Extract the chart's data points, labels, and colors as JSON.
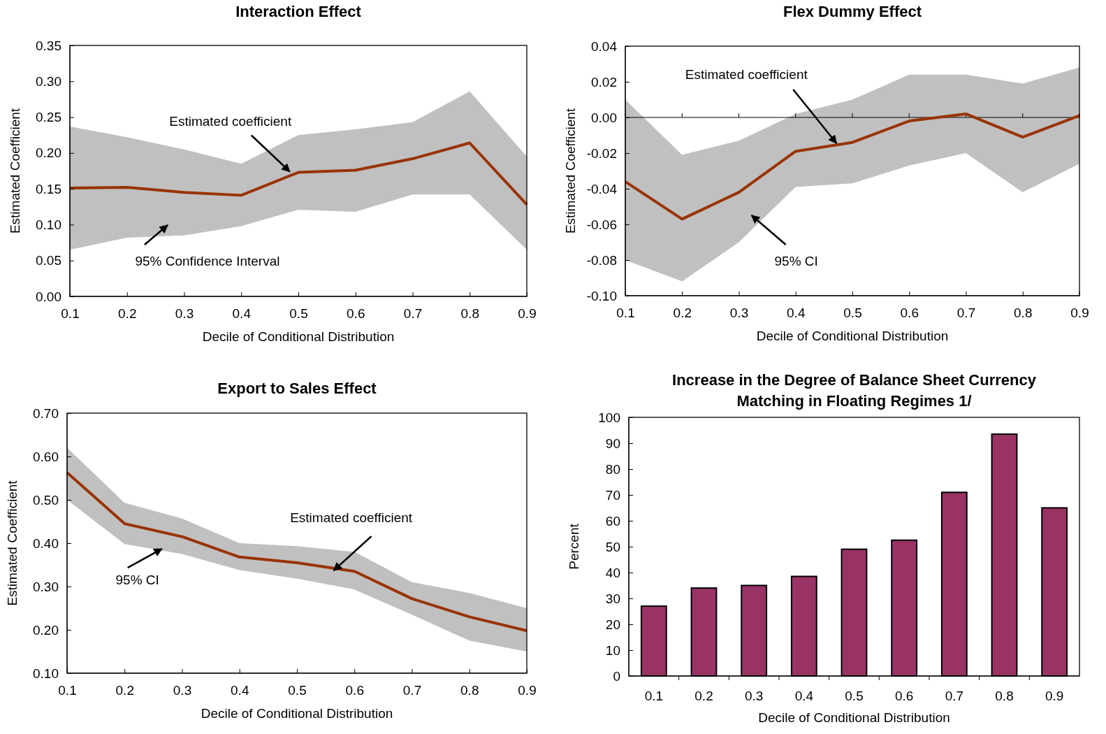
{
  "chart_data": [
    {
      "type": "line",
      "title": "Interaction Effect",
      "xlabel": "Decile of Conditional Distribution",
      "ylabel": "Estimated Coefficient",
      "x": [
        0.1,
        0.2,
        0.3,
        0.4,
        0.5,
        0.6,
        0.7,
        0.8,
        0.9
      ],
      "series": [
        {
          "color": "#993300",
          "values": [
            0.151,
            0.152,
            0.145,
            0.141,
            0.173,
            0.176,
            0.192,
            0.214,
            0.128
          ],
          "lower": [
            0.065,
            0.082,
            0.085,
            0.098,
            0.121,
            0.118,
            0.142,
            0.142,
            0.065
          ],
          "upper": [
            0.237,
            0.222,
            0.205,
            0.185,
            0.225,
            0.233,
            0.243,
            0.286,
            0.195
          ]
        }
      ],
      "xlim": [
        0.1,
        0.9
      ],
      "xticks": [
        0.1,
        0.2,
        0.3,
        0.4,
        0.5,
        0.6,
        0.7,
        0.8,
        0.9
      ],
      "ylim": [
        0,
        0.35
      ],
      "yticks": [
        {
          "value": 0,
          "label": "0.00"
        },
        {
          "value": 0.05,
          "label": "0.05"
        },
        {
          "value": 0.1,
          "label": "0.10"
        },
        {
          "value": 0.15,
          "label": "0.15"
        },
        {
          "value": 0.2,
          "label": "0.20"
        },
        {
          "value": 0.25,
          "label": "0.25"
        },
        {
          "value": 0.3,
          "label": "0.30"
        },
        {
          "value": 0.35,
          "label": "0.35"
        }
      ],
      "annotations": [
        {
          "text": "Estimated coefficient",
          "x": 0.485,
          "y": 0.174
        },
        "95% Confidence Interval"
      ]
    },
    {
      "type": "line",
      "title": "Flex Dummy Effect",
      "xlabel": "Decile of Conditional Distribution",
      "ylabel": "Estimated Coefficient",
      "x": [
        0.1,
        0.2,
        0.3,
        0.4,
        0.5,
        0.6,
        0.7,
        0.8,
        0.9
      ],
      "series": [
        {
          "color": "#993300",
          "values": [
            -0.036,
            -0.057,
            -0.042,
            -0.019,
            -0.014,
            -0.002,
            0.002,
            -0.011,
            0.001
          ],
          "lower": [
            -0.08,
            -0.092,
            -0.07,
            -0.039,
            -0.037,
            -0.027,
            -0.02,
            -0.042,
            -0.026
          ],
          "upper": [
            0.01,
            -0.021,
            -0.013,
            0.002,
            0.01,
            0.024,
            0.024,
            0.019,
            0.028
          ]
        }
      ],
      "xlim": [
        0.1,
        0.9
      ],
      "xticks": [
        0.1,
        0.2,
        0.3,
        0.4,
        0.5,
        0.6,
        0.7,
        0.8,
        0.9
      ],
      "ylim": [
        -0.1,
        0.04
      ],
      "yticks": [
        {
          "value": -0.1,
          "label": "-0.10"
        },
        {
          "value": -0.08,
          "label": "-0.08"
        },
        {
          "value": -0.06,
          "label": "-0.06"
        },
        {
          "value": -0.04,
          "label": "-0.04"
        },
        {
          "value": -0.02,
          "label": "-0.02"
        },
        {
          "value": 0,
          "label": "0.00"
        },
        {
          "value": 0.02,
          "label": "0.02"
        },
        {
          "value": 0.04,
          "label": "0.04"
        }
      ],
      "ref_lines": [
        {
          "axis": "y",
          "value": 0,
          "color": "#000000"
        }
      ],
      "annotations": [
        {
          "text": "Estimated coefficient",
          "x": 0.472,
          "y": -0.0145
        },
        "95% CI"
      ]
    },
    {
      "type": "line",
      "title": "Export to Sales Effect",
      "xlabel": "Decile of Conditional Distribution",
      "ylabel": "Estimated Coefficient",
      "x": [
        0.1,
        0.2,
        0.3,
        0.4,
        0.5,
        0.6,
        0.7,
        0.8,
        0.9
      ],
      "series": [
        {
          "color": "#993300",
          "values": [
            0.563,
            0.445,
            0.415,
            0.368,
            0.355,
            0.335,
            0.272,
            0.23,
            0.198
          ],
          "lower": [
            0.5,
            0.398,
            0.375,
            0.338,
            0.318,
            0.293,
            0.235,
            0.175,
            0.15
          ],
          "upper": [
            0.62,
            0.493,
            0.457,
            0.4,
            0.393,
            0.38,
            0.31,
            0.285,
            0.25
          ]
        }
      ],
      "xlim": [
        0.1,
        0.9
      ],
      "xticks": [
        0.1,
        0.2,
        0.3,
        0.4,
        0.5,
        0.6,
        0.7,
        0.8,
        0.9
      ],
      "ylim": [
        0.1,
        0.7
      ],
      "yticks": [
        {
          "value": 0.1,
          "label": "0.10"
        },
        {
          "value": 0.2,
          "label": "0.20"
        },
        {
          "value": 0.3,
          "label": "0.30"
        },
        {
          "value": 0.4,
          "label": "0.40"
        },
        {
          "value": 0.5,
          "label": "0.50"
        },
        {
          "value": 0.6,
          "label": "0.60"
        },
        {
          "value": 0.7,
          "label": "0.70"
        }
      ],
      "annotations": [
        {
          "text": "Estimated coefficient",
          "x": 0.564,
          "y": 0.337
        },
        {
          "text": "95% CI",
          "x": 0.265,
          "y": 0.387
        }
      ]
    },
    {
      "type": "bar",
      "title": "Increase in the Degree of Balance Sheet Currency Matching in Floating Regimes 1/",
      "xlabel": "Decile of Conditional Distribution",
      "ylabel": "Percent",
      "categories": [
        "0.1",
        "0.2",
        "0.3",
        "0.4",
        "0.5",
        "0.6",
        "0.7",
        "0.8",
        "0.9"
      ],
      "values": [
        27,
        34,
        35,
        38.5,
        49,
        52.5,
        71,
        93.5,
        65
      ],
      "color": "#993366",
      "ylim": [
        0,
        100
      ],
      "yticks": [
        0,
        10,
        20,
        30,
        40,
        50,
        60,
        70,
        80,
        90,
        100
      ]
    }
  ]
}
